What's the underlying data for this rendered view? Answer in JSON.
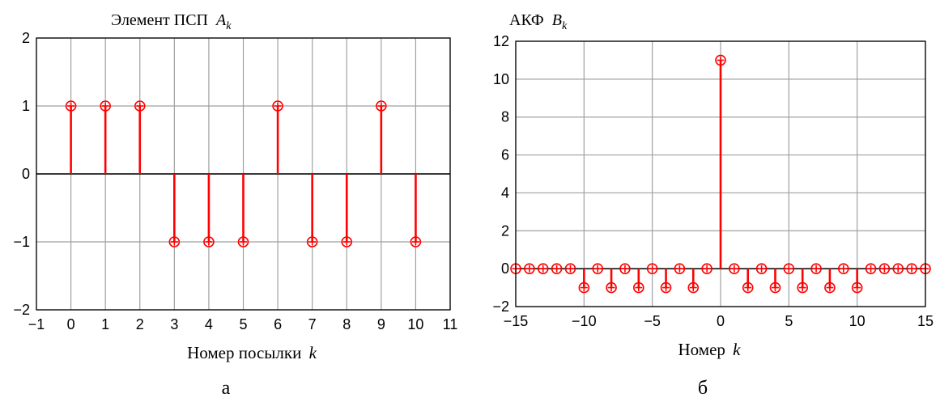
{
  "chart_data": [
    {
      "type": "stem",
      "title": "Элемент ПСП",
      "title_symbol": "A",
      "title_subscript": "k",
      "xlabel": "Номер посылки",
      "xlabel_symbol": "k",
      "caption": "а",
      "xlim": [
        -1,
        11
      ],
      "ylim": [
        -2,
        2
      ],
      "xticks": [
        -1,
        0,
        1,
        2,
        3,
        4,
        5,
        6,
        7,
        8,
        9,
        10,
        11
      ],
      "yticks": [
        -2,
        -1,
        0,
        1,
        2
      ],
      "grid": true,
      "x": [
        0,
        1,
        2,
        3,
        4,
        5,
        6,
        7,
        8,
        9,
        10
      ],
      "y": [
        1,
        1,
        1,
        -1,
        -1,
        -1,
        1,
        -1,
        -1,
        1,
        -1
      ],
      "color": "#ff0000"
    },
    {
      "type": "stem",
      "title": "АКФ",
      "title_symbol": "B",
      "title_subscript": "k",
      "xlabel": "Номер",
      "xlabel_symbol": "k",
      "caption": "б",
      "xlim": [
        -15,
        15
      ],
      "ylim": [
        -2,
        12
      ],
      "xticks": [
        -15,
        -10,
        -5,
        0,
        5,
        10,
        15
      ],
      "yticks": [
        -2,
        0,
        2,
        4,
        6,
        8,
        10,
        12
      ],
      "grid": true,
      "x": [
        -15,
        -14,
        -13,
        -12,
        -11,
        -10,
        -9,
        -8,
        -7,
        -6,
        -5,
        -4,
        -3,
        -2,
        -1,
        0,
        1,
        2,
        3,
        4,
        5,
        6,
        7,
        8,
        9,
        10,
        11,
        12,
        13,
        14,
        15
      ],
      "y": [
        0,
        0,
        0,
        0,
        0,
        -1,
        0,
        -1,
        0,
        -1,
        0,
        -1,
        0,
        -1,
        0,
        11,
        0,
        -1,
        0,
        -1,
        0,
        -1,
        0,
        -1,
        0,
        -1,
        0,
        0,
        0,
        0,
        0
      ],
      "color": "#ff0000"
    }
  ]
}
